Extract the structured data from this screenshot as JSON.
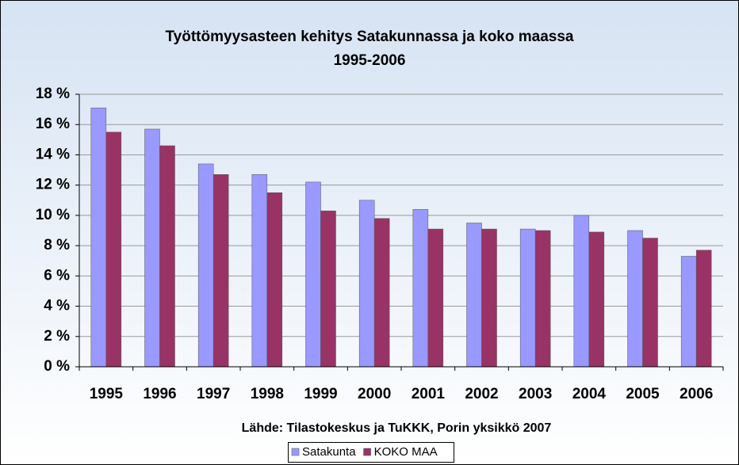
{
  "chart_data": {
    "type": "bar",
    "title": "Työttömyysasteen kehitys Satakunnassa ja koko maassa",
    "subtitle": "1995-2006",
    "x_label": "Lähde: Tilastokeskus ja TuKKK, Porin yksikkö 2007",
    "categories": [
      "1995",
      "1996",
      "1997",
      "1998",
      "1999",
      "2000",
      "2001",
      "2002",
      "2003",
      "2004",
      "2005",
      "2006"
    ],
    "series": [
      {
        "name": "Satakunta",
        "color": "#9999ff",
        "values": [
          17.1,
          15.7,
          13.4,
          12.7,
          12.2,
          11.0,
          10.4,
          9.5,
          9.1,
          10.0,
          9.0,
          7.3
        ]
      },
      {
        "name": "KOKO MAA",
        "color": "#993366",
        "values": [
          15.5,
          14.6,
          12.7,
          11.5,
          10.3,
          9.8,
          9.1,
          9.1,
          9.0,
          8.9,
          8.5,
          7.7
        ]
      }
    ],
    "ylim": [
      0,
      18
    ],
    "yticks": [
      {
        "value": 0,
        "label": "0 %"
      },
      {
        "value": 2,
        "label": "2 %"
      },
      {
        "value": 4,
        "label": "4 %"
      },
      {
        "value": 6,
        "label": "6 %"
      },
      {
        "value": 8,
        "label": "8 %"
      },
      {
        "value": 10,
        "label": "10 %"
      },
      {
        "value": 12,
        "label": "12 %"
      },
      {
        "value": 14,
        "label": "14 %"
      },
      {
        "value": 16,
        "label": "16 %"
      },
      {
        "value": 18,
        "label": "18 %"
      }
    ],
    "grid": true,
    "legend": "bottom"
  }
}
